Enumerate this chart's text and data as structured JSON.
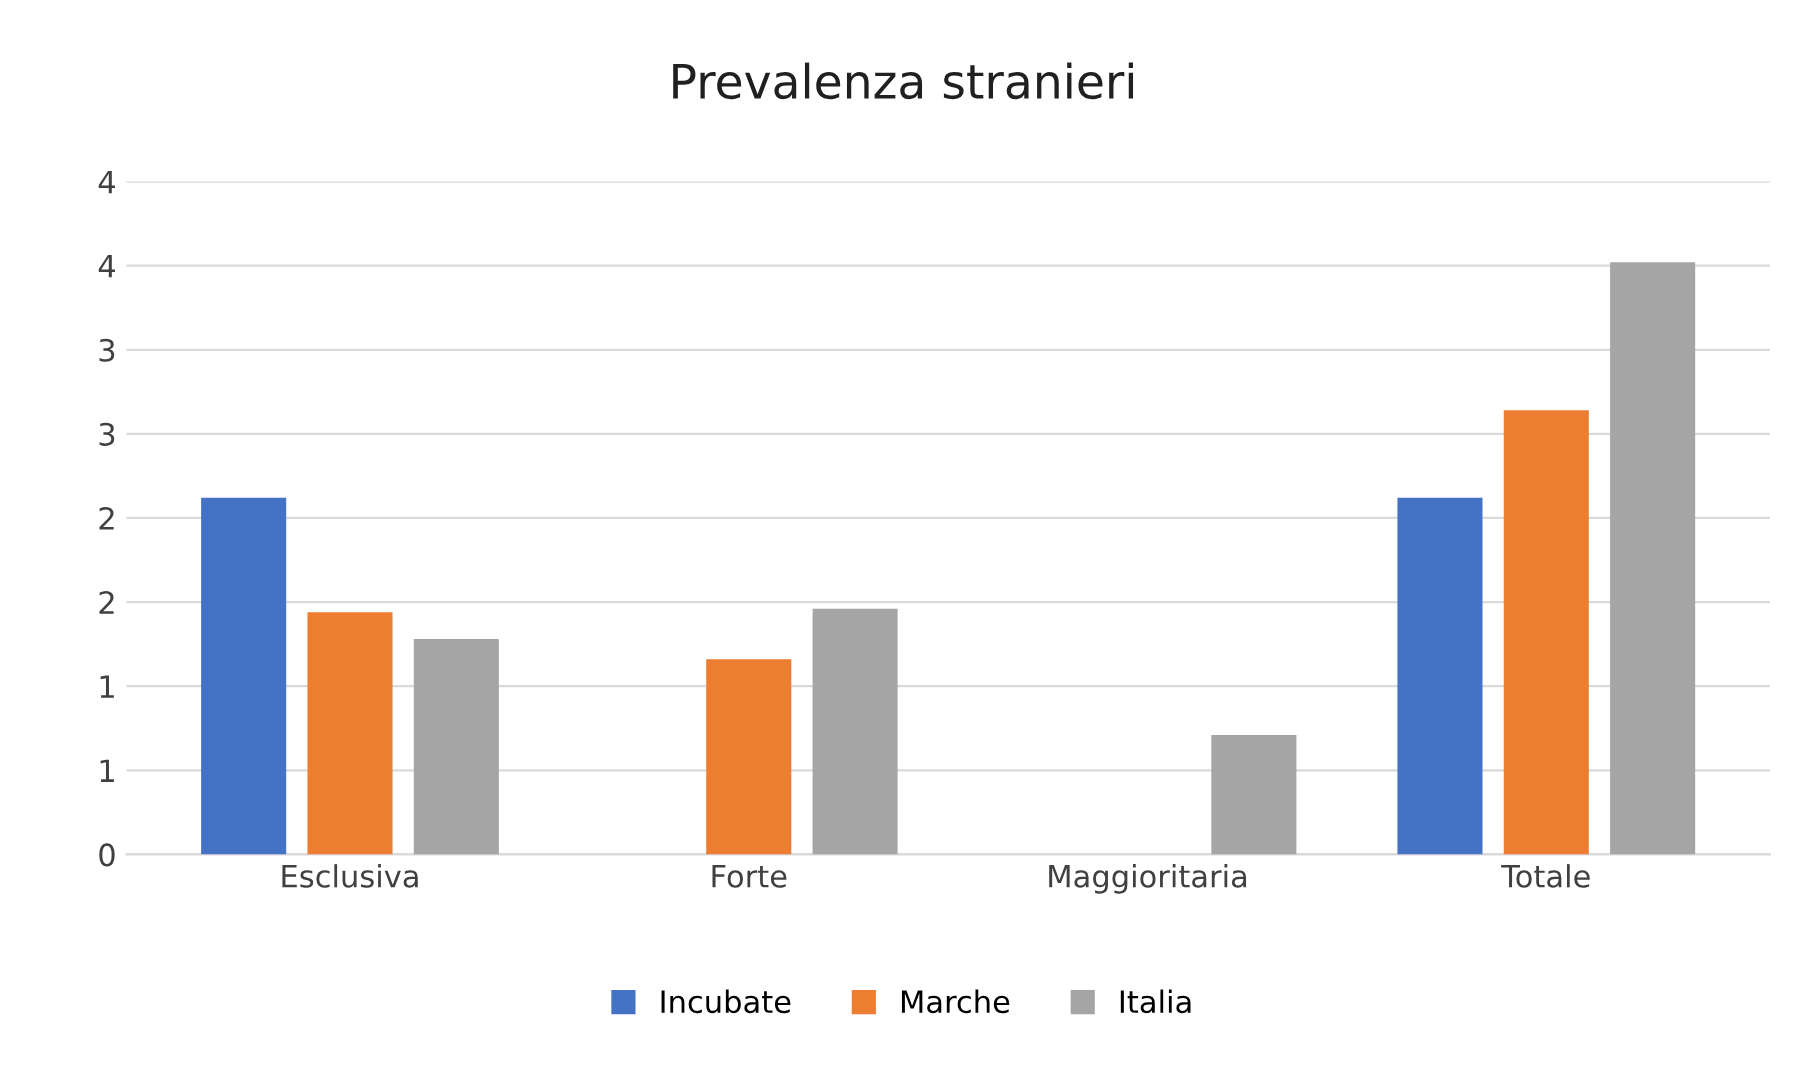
{
  "chart_data": {
    "type": "bar",
    "title": "Prevalenza stranieri",
    "categories": [
      "Esclusiva",
      "Forte",
      "Maggioritaria",
      "Totale"
    ],
    "series": [
      {
        "name": "Incubate",
        "color": "#4472c4",
        "values": [
          2.12,
          0,
          0,
          2.12
        ]
      },
      {
        "name": "Marche",
        "color": "#ed7d31",
        "values": [
          1.44,
          1.16,
          0,
          2.64
        ]
      },
      {
        "name": "Italia",
        "color": "#a5a5a5",
        "values": [
          1.28,
          1.46,
          0.71,
          3.52
        ]
      }
    ],
    "ylim": [
      0,
      4
    ],
    "yticks": [
      0,
      {
        "value": 0.5,
        "label": "1"
      },
      1,
      {
        "value": 1.5,
        "label": "2"
      },
      2,
      {
        "value": 2.5,
        "label": "3"
      },
      3,
      {
        "value": 3.5,
        "label": "4"
      },
      4
    ],
    "grid": "y",
    "legend": "bottom"
  }
}
